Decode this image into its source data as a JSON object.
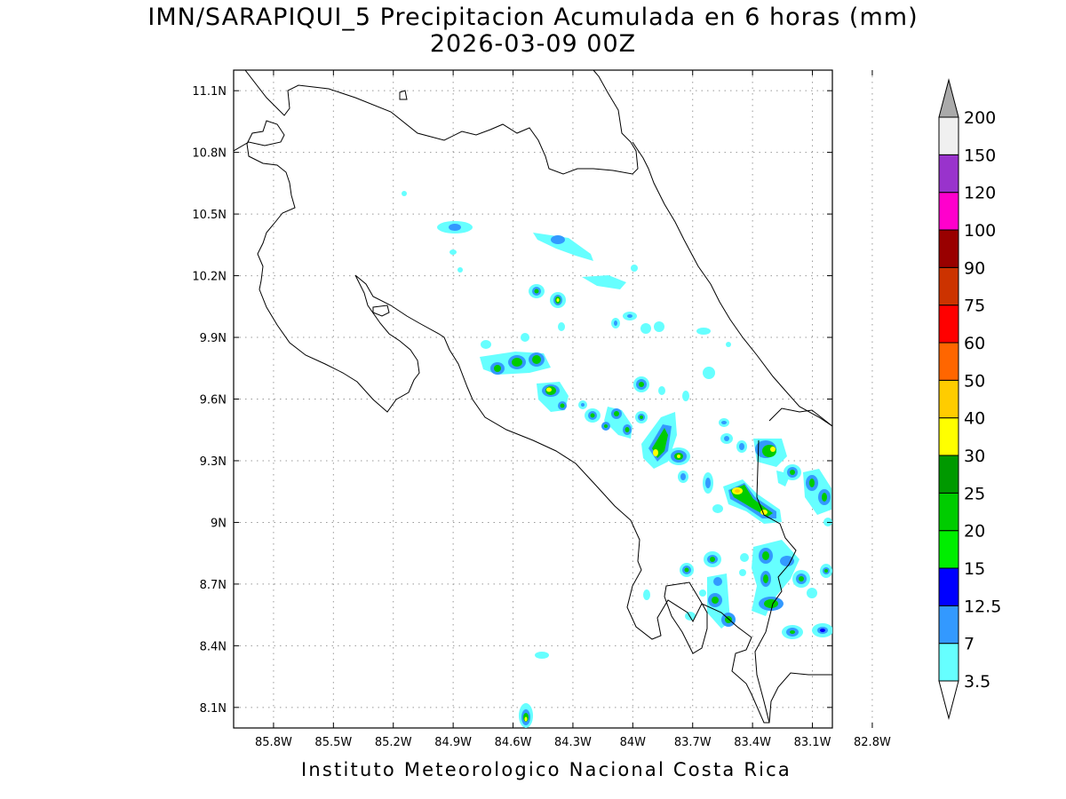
{
  "title": {
    "line1": "IMN/SARAPIQUI_5 Precipitacion Acumulada en 6 horas (mm)",
    "line2": "2026-03-09 00Z"
  },
  "credit": "Instituto Meteorologico Nacional Costa Rica",
  "map": {
    "lon_range": [
      -86.0,
      -83.0
    ],
    "lat_range": [
      8.0,
      11.2
    ],
    "grid": true,
    "x_ticks": [
      {
        "value": -85.8,
        "label": "85.8W"
      },
      {
        "value": -85.5,
        "label": "85.5W"
      },
      {
        "value": -85.2,
        "label": "85.2W"
      },
      {
        "value": -84.9,
        "label": "84.9W"
      },
      {
        "value": -84.6,
        "label": "84.6W"
      },
      {
        "value": -84.3,
        "label": "84.3W"
      },
      {
        "value": -84.0,
        "label": "84W"
      },
      {
        "value": -83.7,
        "label": "83.7W"
      },
      {
        "value": -83.4,
        "label": "83.4W"
      },
      {
        "value": -83.1,
        "label": "83.1W"
      },
      {
        "value": -82.8,
        "label": "82.8W"
      }
    ],
    "y_ticks": [
      {
        "value": 11.1,
        "label": "11.1N"
      },
      {
        "value": 10.8,
        "label": "10.8N"
      },
      {
        "value": 10.5,
        "label": "10.5N"
      },
      {
        "value": 10.2,
        "label": "10.2N"
      },
      {
        "value": 9.9,
        "label": "9.9N"
      },
      {
        "value": 9.6,
        "label": "9.6N"
      },
      {
        "value": 9.3,
        "label": "9.3N"
      },
      {
        "value": 9.0,
        "label": "9N"
      },
      {
        "value": 8.7,
        "label": "8.7N"
      },
      {
        "value": 8.4,
        "label": "8.4N"
      },
      {
        "value": 8.1,
        "label": "8.1N"
      }
    ]
  },
  "colorbar": {
    "levels": [
      "3.5",
      "7",
      "12.5",
      "15",
      "20",
      "25",
      "30",
      "40",
      "50",
      "60",
      "75",
      "90",
      "100",
      "120",
      "150",
      "200"
    ],
    "colors": [
      "#66ffff",
      "#3399ff",
      "#0000ff",
      "#00ee00",
      "#00cc00",
      "#009900",
      "#ffff00",
      "#ffcc00",
      "#ff6600",
      "#ff0000",
      "#cc3300",
      "#990000",
      "#ff00cc",
      "#9933cc",
      "#f0f0f0",
      "#aaaaaa"
    ]
  }
}
